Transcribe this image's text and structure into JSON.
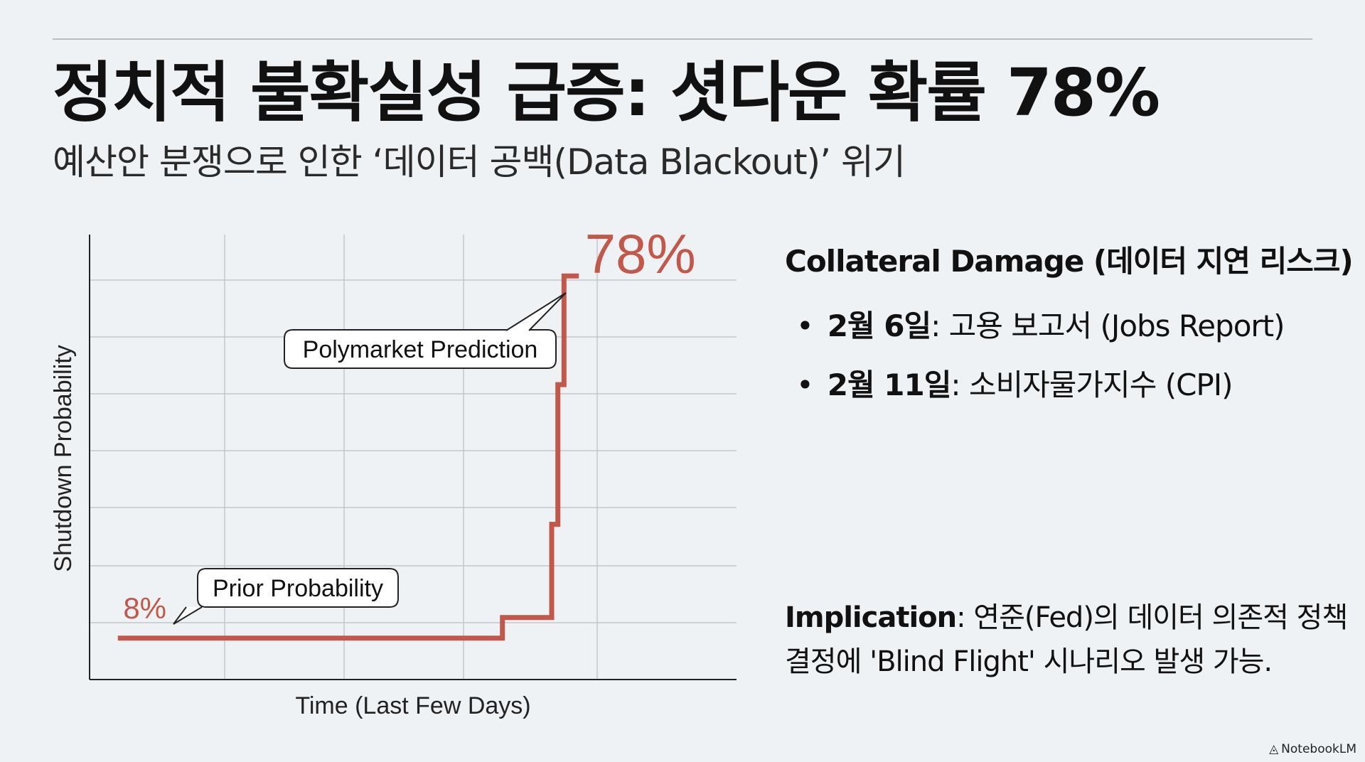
{
  "header": {
    "title": "정치적 불확실성 급증: 셧다운 확률 78%",
    "subtitle": "예산안 분쟁으로 인한 ‘데이터 공백(Data Blackout)’ 위기"
  },
  "chart_data": {
    "type": "line",
    "style": "step",
    "xlabel": "Time (Last Few Days)",
    "ylabel": "Shutdown Probability",
    "x": [
      0.0,
      0.62,
      0.62,
      0.69,
      0.7,
      0.7,
      0.71,
      0.71,
      0.72,
      0.72,
      0.74
    ],
    "y": [
      8,
      8,
      12,
      12,
      12,
      30,
      30,
      57,
      57,
      78,
      78
    ],
    "xlim": [
      -0.05,
      1.0
    ],
    "ylim": [
      0,
      86
    ],
    "grid": true,
    "line_color": "#c2584a",
    "annotations": {
      "start_value": "8%",
      "end_value": "78%",
      "start_label": "Prior Probability",
      "end_label": "Polymarket Prediction"
    }
  },
  "panel": {
    "heading": "Collateral Damage (데이터 지연 리스크)",
    "items": [
      {
        "date": "2월 6일",
        "text": ": 고용 보고서 (Jobs Report)"
      },
      {
        "date": "2월 11일",
        "text": ": 소비자물가지수 (CPI)"
      }
    ]
  },
  "implication": {
    "label": "Implication",
    "text": ": 연준(Fed)의 데이터 의존적 정책 결정에 'Blind Flight' 시나리오 발생 가능."
  },
  "brand": {
    "icon": "notebooklm-icon",
    "text": "NotebookLM"
  }
}
